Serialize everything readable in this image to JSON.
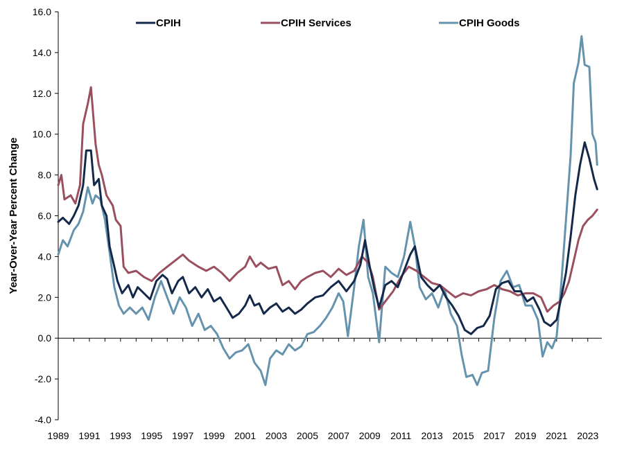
{
  "chart_data": {
    "type": "line",
    "title": "",
    "xlabel": "",
    "ylabel": "Year-Over-Year Percent Change",
    "ylim": [
      -4.0,
      16.0
    ],
    "xlim": [
      1989,
      2023.9
    ],
    "y_ticks": [
      "-4.0",
      "-2.0",
      "0.0",
      "2.0",
      "4.0",
      "6.0",
      "8.0",
      "10.0",
      "12.0",
      "14.0",
      "16.0"
    ],
    "y_tick_values": [
      -4,
      -2,
      0,
      2,
      4,
      6,
      8,
      10,
      12,
      14,
      16
    ],
    "x_ticks": [
      "1989",
      "1991",
      "1993",
      "1995",
      "1997",
      "1999",
      "2001",
      "2003",
      "2005",
      "2007",
      "2009",
      "2011",
      "2013",
      "2015",
      "2017",
      "2019",
      "2021",
      "2023"
    ],
    "x_tick_values": [
      1989,
      1991,
      1993,
      1995,
      1997,
      1999,
      2001,
      2003,
      2005,
      2007,
      2009,
      2011,
      2013,
      2015,
      2017,
      2019,
      2021,
      2023
    ],
    "grid": false,
    "legend_position": "top",
    "series": [
      {
        "name": "CPIH",
        "color": "#14284a",
        "points": [
          [
            1989.0,
            5.7
          ],
          [
            1989.3,
            5.9
          ],
          [
            1989.7,
            5.6
          ],
          [
            1990.0,
            6.0
          ],
          [
            1990.3,
            6.5
          ],
          [
            1990.6,
            7.5
          ],
          [
            1990.8,
            9.2
          ],
          [
            1991.1,
            9.2
          ],
          [
            1991.3,
            7.5
          ],
          [
            1991.6,
            7.8
          ],
          [
            1991.8,
            6.5
          ],
          [
            1992.1,
            6.0
          ],
          [
            1992.3,
            4.5
          ],
          [
            1992.6,
            3.5
          ],
          [
            1992.8,
            2.8
          ],
          [
            1993.1,
            2.2
          ],
          [
            1993.5,
            2.6
          ],
          [
            1993.8,
            2.0
          ],
          [
            1994.1,
            2.5
          ],
          [
            1994.5,
            2.2
          ],
          [
            1994.9,
            1.9
          ],
          [
            1995.3,
            2.8
          ],
          [
            1995.7,
            3.1
          ],
          [
            1996.0,
            2.9
          ],
          [
            1996.3,
            2.2
          ],
          [
            1996.7,
            2.8
          ],
          [
            1997.0,
            3.0
          ],
          [
            1997.4,
            2.2
          ],
          [
            1997.8,
            2.5
          ],
          [
            1998.2,
            2.0
          ],
          [
            1998.6,
            2.4
          ],
          [
            1999.0,
            1.8
          ],
          [
            1999.4,
            2.0
          ],
          [
            1999.8,
            1.5
          ],
          [
            2000.2,
            1.0
          ],
          [
            2000.6,
            1.2
          ],
          [
            2001.0,
            1.6
          ],
          [
            2001.3,
            2.1
          ],
          [
            2001.6,
            1.6
          ],
          [
            2001.9,
            1.7
          ],
          [
            2002.2,
            1.2
          ],
          [
            2002.6,
            1.5
          ],
          [
            2003.0,
            1.7
          ],
          [
            2003.4,
            1.3
          ],
          [
            2003.8,
            1.5
          ],
          [
            2004.2,
            1.2
          ],
          [
            2004.6,
            1.4
          ],
          [
            2005.0,
            1.7
          ],
          [
            2005.5,
            2.0
          ],
          [
            2006.0,
            2.1
          ],
          [
            2006.5,
            2.5
          ],
          [
            2007.0,
            2.8
          ],
          [
            2007.5,
            2.3
          ],
          [
            2008.0,
            2.8
          ],
          [
            2008.4,
            3.6
          ],
          [
            2008.7,
            4.8
          ],
          [
            2009.0,
            3.5
          ],
          [
            2009.3,
            2.4
          ],
          [
            2009.6,
            1.5
          ],
          [
            2010.0,
            2.6
          ],
          [
            2010.4,
            2.8
          ],
          [
            2010.8,
            2.5
          ],
          [
            2011.2,
            3.3
          ],
          [
            2011.6,
            4.1
          ],
          [
            2011.9,
            4.5
          ],
          [
            2012.3,
            3.0
          ],
          [
            2012.7,
            2.6
          ],
          [
            2013.1,
            2.3
          ],
          [
            2013.5,
            2.6
          ],
          [
            2013.9,
            2.0
          ],
          [
            2014.3,
            1.6
          ],
          [
            2014.7,
            1.1
          ],
          [
            2015.1,
            0.4
          ],
          [
            2015.5,
            0.2
          ],
          [
            2015.9,
            0.5
          ],
          [
            2016.3,
            0.6
          ],
          [
            2016.7,
            1.1
          ],
          [
            2017.1,
            2.4
          ],
          [
            2017.5,
            2.7
          ],
          [
            2017.9,
            2.8
          ],
          [
            2018.3,
            2.3
          ],
          [
            2018.7,
            2.3
          ],
          [
            2019.1,
            1.8
          ],
          [
            2019.5,
            2.0
          ],
          [
            2019.9,
            1.4
          ],
          [
            2020.2,
            0.8
          ],
          [
            2020.6,
            0.6
          ],
          [
            2021.0,
            0.9
          ],
          [
            2021.3,
            2.0
          ],
          [
            2021.6,
            3.2
          ],
          [
            2021.9,
            5.0
          ],
          [
            2022.2,
            7.0
          ],
          [
            2022.5,
            8.5
          ],
          [
            2022.8,
            9.6
          ],
          [
            2023.1,
            8.8
          ],
          [
            2023.4,
            7.8
          ],
          [
            2023.6,
            7.3
          ]
        ]
      },
      {
        "name": "CPIH Services",
        "color": "#9a4f5f",
        "points": [
          [
            1989.0,
            7.5
          ],
          [
            1989.2,
            8.0
          ],
          [
            1989.4,
            6.8
          ],
          [
            1989.8,
            7.0
          ],
          [
            1990.1,
            6.6
          ],
          [
            1990.4,
            7.5
          ],
          [
            1990.6,
            10.5
          ],
          [
            1990.9,
            11.5
          ],
          [
            1991.1,
            12.3
          ],
          [
            1991.4,
            9.5
          ],
          [
            1991.6,
            8.5
          ],
          [
            1991.8,
            8.0
          ],
          [
            1992.1,
            7.0
          ],
          [
            1992.5,
            6.5
          ],
          [
            1992.7,
            5.8
          ],
          [
            1993.0,
            5.5
          ],
          [
            1993.2,
            3.5
          ],
          [
            1993.5,
            3.2
          ],
          [
            1994.0,
            3.3
          ],
          [
            1994.5,
            3.0
          ],
          [
            1995.0,
            2.8
          ],
          [
            1995.5,
            3.2
          ],
          [
            1996.0,
            3.5
          ],
          [
            1996.5,
            3.8
          ],
          [
            1997.0,
            4.1
          ],
          [
            1997.4,
            3.8
          ],
          [
            1998.0,
            3.5
          ],
          [
            1998.5,
            3.3
          ],
          [
            1999.0,
            3.5
          ],
          [
            1999.5,
            3.2
          ],
          [
            2000.0,
            2.8
          ],
          [
            2000.5,
            3.2
          ],
          [
            2001.0,
            3.5
          ],
          [
            2001.3,
            4.0
          ],
          [
            2001.7,
            3.5
          ],
          [
            2002.0,
            3.7
          ],
          [
            2002.5,
            3.4
          ],
          [
            2003.0,
            3.5
          ],
          [
            2003.4,
            2.6
          ],
          [
            2003.8,
            2.8
          ],
          [
            2004.2,
            2.4
          ],
          [
            2004.6,
            2.8
          ],
          [
            2005.0,
            3.0
          ],
          [
            2005.5,
            3.2
          ],
          [
            2006.0,
            3.3
          ],
          [
            2006.5,
            3.0
          ],
          [
            2007.0,
            3.4
          ],
          [
            2007.5,
            3.1
          ],
          [
            2008.0,
            3.3
          ],
          [
            2008.5,
            4.0
          ],
          [
            2008.9,
            3.7
          ],
          [
            2009.2,
            3.0
          ],
          [
            2009.6,
            1.4
          ],
          [
            2010.0,
            1.8
          ],
          [
            2010.5,
            2.3
          ],
          [
            2011.0,
            3.0
          ],
          [
            2011.5,
            3.5
          ],
          [
            2012.0,
            3.3
          ],
          [
            2012.5,
            3.0
          ],
          [
            2013.0,
            2.7
          ],
          [
            2013.5,
            2.6
          ],
          [
            2014.0,
            2.3
          ],
          [
            2014.5,
            2.0
          ],
          [
            2015.0,
            2.2
          ],
          [
            2015.5,
            2.1
          ],
          [
            2016.0,
            2.3
          ],
          [
            2016.5,
            2.4
          ],
          [
            2017.0,
            2.6
          ],
          [
            2017.5,
            2.4
          ],
          [
            2018.0,
            2.3
          ],
          [
            2018.5,
            2.1
          ],
          [
            2019.0,
            2.2
          ],
          [
            2019.5,
            2.2
          ],
          [
            2020.0,
            2.0
          ],
          [
            2020.4,
            1.3
          ],
          [
            2020.8,
            1.6
          ],
          [
            2021.2,
            1.8
          ],
          [
            2021.5,
            2.2
          ],
          [
            2021.8,
            2.8
          ],
          [
            2022.1,
            3.8
          ],
          [
            2022.4,
            4.8
          ],
          [
            2022.7,
            5.5
          ],
          [
            2023.0,
            5.8
          ],
          [
            2023.3,
            6.0
          ],
          [
            2023.6,
            6.3
          ]
        ]
      },
      {
        "name": "CPIH Goods",
        "color": "#6593ad",
        "points": [
          [
            1989.0,
            4.1
          ],
          [
            1989.3,
            4.8
          ],
          [
            1989.6,
            4.5
          ],
          [
            1990.0,
            5.3
          ],
          [
            1990.3,
            5.6
          ],
          [
            1990.6,
            6.2
          ],
          [
            1990.9,
            7.4
          ],
          [
            1991.2,
            6.6
          ],
          [
            1991.4,
            7.0
          ],
          [
            1991.7,
            6.8
          ],
          [
            1992.0,
            5.8
          ],
          [
            1992.3,
            4.2
          ],
          [
            1992.6,
            2.5
          ],
          [
            1992.9,
            1.6
          ],
          [
            1993.2,
            1.2
          ],
          [
            1993.6,
            1.5
          ],
          [
            1994.0,
            1.2
          ],
          [
            1994.4,
            1.5
          ],
          [
            1994.8,
            0.9
          ],
          [
            1995.2,
            2.0
          ],
          [
            1995.6,
            2.8
          ],
          [
            1996.0,
            2.0
          ],
          [
            1996.4,
            1.2
          ],
          [
            1996.8,
            2.0
          ],
          [
            1997.2,
            1.5
          ],
          [
            1997.6,
            0.6
          ],
          [
            1998.0,
            1.2
          ],
          [
            1998.4,
            0.4
          ],
          [
            1998.8,
            0.6
          ],
          [
            1999.2,
            0.2
          ],
          [
            1999.6,
            -0.5
          ],
          [
            2000.0,
            -1.0
          ],
          [
            2000.4,
            -0.7
          ],
          [
            2000.8,
            -0.6
          ],
          [
            2001.2,
            -0.3
          ],
          [
            2001.6,
            -1.2
          ],
          [
            2002.0,
            -1.6
          ],
          [
            2002.3,
            -2.3
          ],
          [
            2002.6,
            -1.0
          ],
          [
            2003.0,
            -0.6
          ],
          [
            2003.4,
            -0.8
          ],
          [
            2003.8,
            -0.3
          ],
          [
            2004.2,
            -0.6
          ],
          [
            2004.6,
            -0.4
          ],
          [
            2005.0,
            0.2
          ],
          [
            2005.4,
            0.3
          ],
          [
            2005.8,
            0.6
          ],
          [
            2006.2,
            1.0
          ],
          [
            2006.6,
            1.5
          ],
          [
            2007.0,
            2.2
          ],
          [
            2007.3,
            1.8
          ],
          [
            2007.6,
            0.1
          ],
          [
            2008.0,
            2.5
          ],
          [
            2008.3,
            4.5
          ],
          [
            2008.6,
            5.8
          ],
          [
            2008.9,
            3.0
          ],
          [
            2009.2,
            2.2
          ],
          [
            2009.6,
            -0.2
          ],
          [
            2010.0,
            3.5
          ],
          [
            2010.4,
            3.2
          ],
          [
            2010.8,
            3.0
          ],
          [
            2011.2,
            4.0
          ],
          [
            2011.6,
            5.7
          ],
          [
            2011.9,
            4.5
          ],
          [
            2012.2,
            2.5
          ],
          [
            2012.6,
            1.9
          ],
          [
            2013.0,
            2.2
          ],
          [
            2013.4,
            1.5
          ],
          [
            2013.8,
            2.4
          ],
          [
            2014.2,
            1.2
          ],
          [
            2014.6,
            0.6
          ],
          [
            2014.9,
            -0.8
          ],
          [
            2015.2,
            -1.9
          ],
          [
            2015.6,
            -1.8
          ],
          [
            2015.9,
            -2.3
          ],
          [
            2016.2,
            -1.7
          ],
          [
            2016.6,
            -1.6
          ],
          [
            2017.0,
            1.0
          ],
          [
            2017.4,
            2.8
          ],
          [
            2017.8,
            3.3
          ],
          [
            2018.2,
            2.5
          ],
          [
            2018.6,
            2.6
          ],
          [
            2019.0,
            1.6
          ],
          [
            2019.4,
            1.6
          ],
          [
            2019.8,
            0.9
          ],
          [
            2020.1,
            -0.9
          ],
          [
            2020.4,
            -0.2
          ],
          [
            2020.7,
            -0.5
          ],
          [
            2021.0,
            0.1
          ],
          [
            2021.3,
            2.7
          ],
          [
            2021.6,
            5.8
          ],
          [
            2021.9,
            9.0
          ],
          [
            2022.1,
            12.5
          ],
          [
            2022.4,
            13.5
          ],
          [
            2022.6,
            14.8
          ],
          [
            2022.8,
            13.4
          ],
          [
            2023.1,
            13.3
          ],
          [
            2023.3,
            10.0
          ],
          [
            2023.5,
            9.6
          ],
          [
            2023.6,
            8.5
          ]
        ]
      }
    ]
  }
}
